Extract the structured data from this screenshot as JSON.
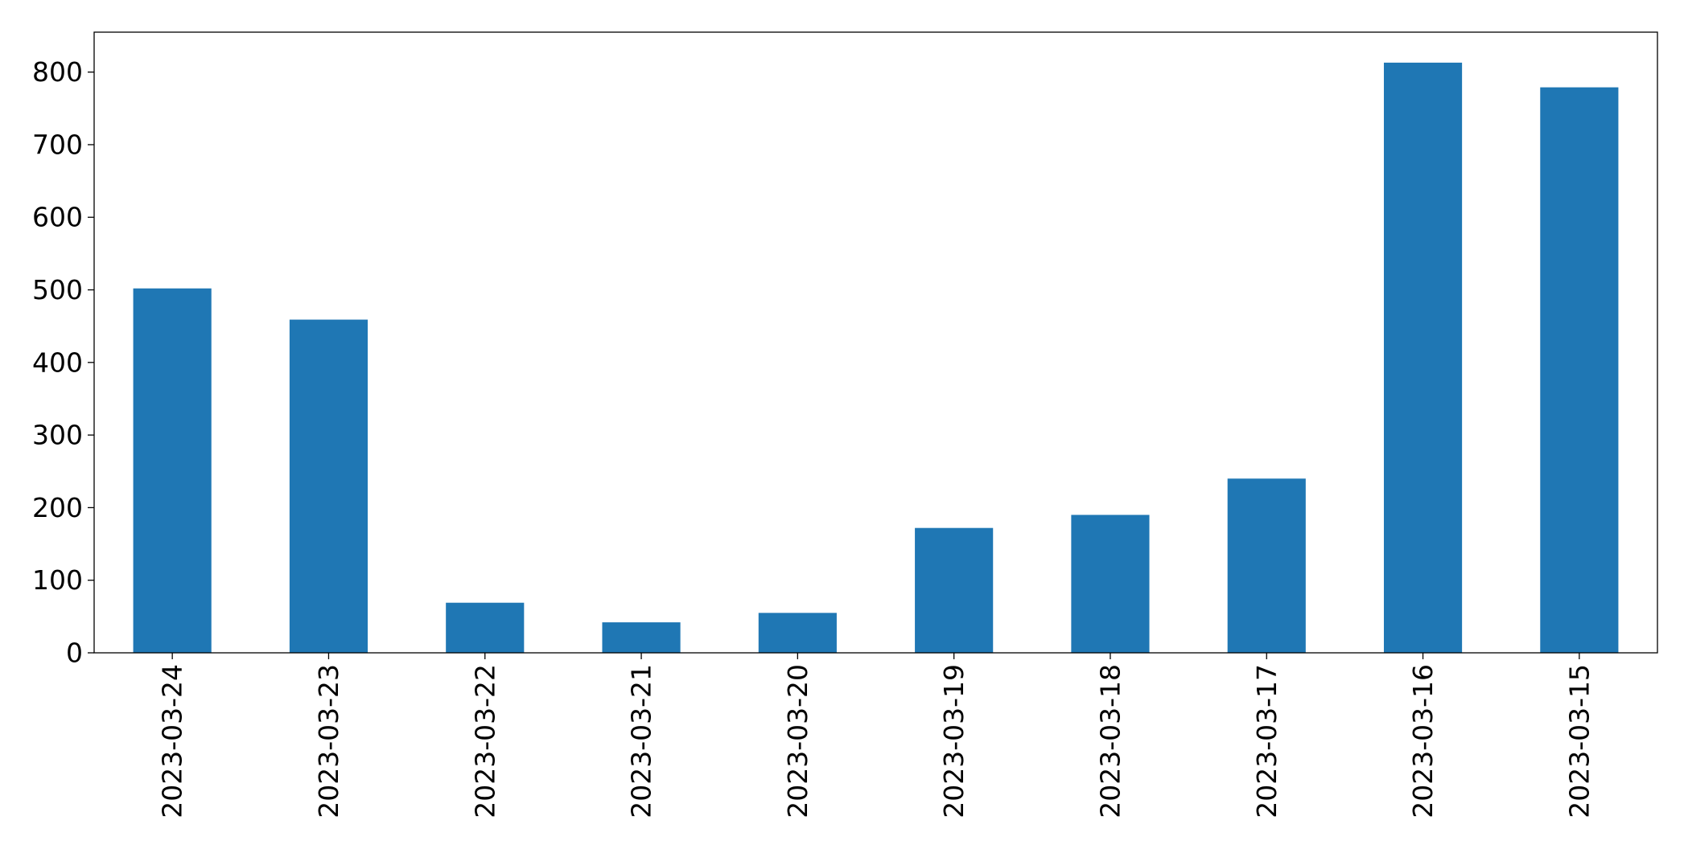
{
  "chart_data": {
    "type": "bar",
    "title": "",
    "xlabel": "",
    "ylabel": "",
    "categories": [
      "2023-03-24",
      "2023-03-23",
      "2023-03-22",
      "2023-03-21",
      "2023-03-20",
      "2023-03-19",
      "2023-03-18",
      "2023-03-17",
      "2023-03-16",
      "2023-03-15"
    ],
    "values": [
      502,
      459,
      69,
      42,
      55,
      172,
      190,
      240,
      813,
      779
    ],
    "ylim": [
      0,
      855
    ],
    "yticks": [
      0,
      100,
      200,
      300,
      400,
      500,
      600,
      700,
      800
    ],
    "bar_color": "#1f77b4",
    "grid": false,
    "legend": false
  }
}
